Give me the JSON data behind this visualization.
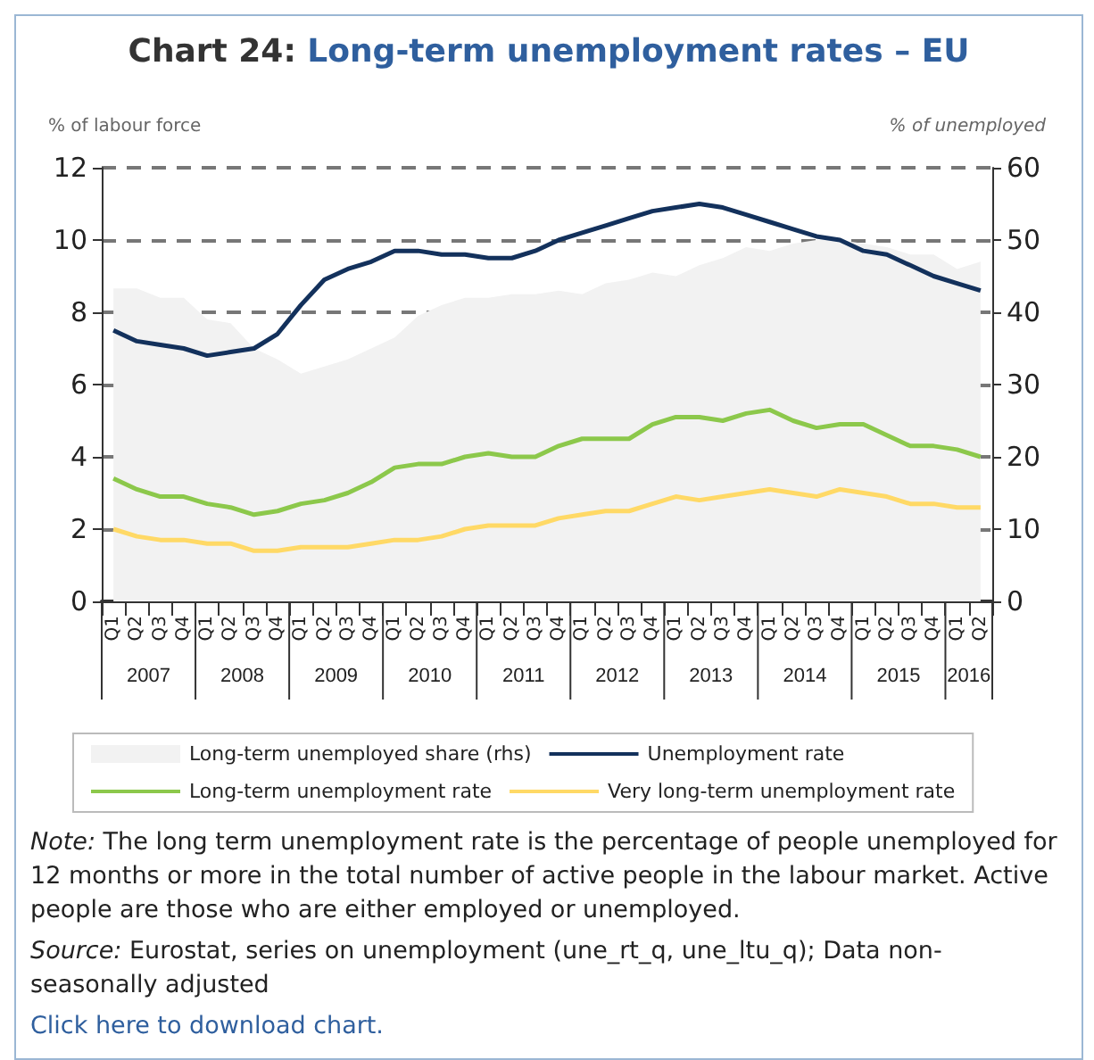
{
  "chart_data": {
    "type": "line",
    "title": "Chart 24: Long-term unemployment rates – EU",
    "ylabel": "% of labour force",
    "y2label": "% of unemployed",
    "categories": [
      "Q1",
      "Q2",
      "Q3",
      "Q4",
      "Q1",
      "Q2",
      "Q3",
      "Q4",
      "Q1",
      "Q2",
      "Q3",
      "Q4",
      "Q1",
      "Q2",
      "Q3",
      "Q4",
      "Q1",
      "Q2",
      "Q3",
      "Q4",
      "Q1",
      "Q2",
      "Q3",
      "Q4",
      "Q1",
      "Q2",
      "Q3",
      "Q4",
      "Q1",
      "Q2",
      "Q3",
      "Q4",
      "Q1",
      "Q2",
      "Q3",
      "Q4",
      "Q1",
      "Q2"
    ],
    "series": [
      {
        "name": "Long-term unemployed share (rhs)",
        "type": "area",
        "axis": "y2",
        "color": "#f2f2f2",
        "values": [
          43.3,
          43.3,
          42,
          42,
          39,
          38.5,
          35,
          33.5,
          31.5,
          32.5,
          33.5,
          35,
          36.5,
          39.5,
          41,
          42,
          42,
          42.5,
          42.5,
          43,
          42.5,
          44,
          44.5,
          45.5,
          45,
          46.5,
          47.5,
          49,
          48.5,
          49.5,
          50,
          50,
          49.5,
          49,
          48,
          48,
          46,
          47
        ]
      },
      {
        "name": "Unemployment rate",
        "color": "#13315c",
        "values": [
          7.5,
          7.2,
          7.1,
          7.0,
          6.8,
          6.9,
          7.0,
          7.4,
          8.2,
          8.9,
          9.2,
          9.4,
          9.7,
          9.7,
          9.6,
          9.6,
          9.5,
          9.5,
          9.7,
          10.0,
          10.2,
          10.4,
          10.6,
          10.8,
          10.9,
          11.0,
          10.9,
          10.7,
          10.5,
          10.3,
          10.1,
          10.0,
          9.7,
          9.6,
          9.3,
          9.0,
          8.8,
          8.6
        ]
      },
      {
        "name": "Long-term unemployment rate",
        "color": "#8cc84b",
        "values": [
          3.4,
          3.1,
          2.9,
          2.9,
          2.7,
          2.6,
          2.4,
          2.5,
          2.7,
          2.8,
          3.0,
          3.3,
          3.7,
          3.8,
          3.8,
          4.0,
          4.1,
          4.0,
          4.0,
          4.3,
          4.5,
          4.5,
          4.5,
          4.9,
          5.1,
          5.1,
          5.0,
          5.2,
          5.3,
          5.0,
          4.8,
          4.9,
          4.9,
          4.6,
          4.3,
          4.3,
          4.2,
          4.0
        ]
      },
      {
        "name": "Very long-term unemployment rate",
        "color": "#ffd966",
        "values": [
          2.0,
          1.8,
          1.7,
          1.7,
          1.6,
          1.6,
          1.4,
          1.4,
          1.5,
          1.5,
          1.5,
          1.6,
          1.7,
          1.7,
          1.8,
          2.0,
          2.1,
          2.1,
          2.1,
          2.3,
          2.4,
          2.5,
          2.5,
          2.7,
          2.9,
          2.8,
          2.9,
          3.0,
          3.1,
          3.0,
          2.9,
          3.1,
          3.0,
          2.9,
          2.7,
          2.7,
          2.6,
          2.6
        ]
      }
    ],
    "ylim": [
      0,
      12
    ],
    "yticks": [
      0,
      2,
      4,
      6,
      8,
      10,
      12
    ],
    "y2lim": [
      0,
      60
    ],
    "y2ticks": [
      0,
      10,
      20,
      30,
      40,
      50,
      60
    ],
    "grid": "y",
    "legend": "bottom",
    "line_style": "solid",
    "marker": "none",
    "annotations": [
      "2007",
      "2008",
      "2009",
      "2010",
      "2011",
      "2012",
      "2013",
      "2014",
      "2015",
      "2016",
      "Note: The long term unemployment rate is the percentage of people unemployed for 12 months or more in the total number of active people in the labour market. Active people are those who are either employed or unemployed.",
      "Source: Eurostat, series on unemployment (une_rt_q, une_ltu_q); Data non-seasonally adjusted",
      "Click here to download chart."
    ]
  }
}
